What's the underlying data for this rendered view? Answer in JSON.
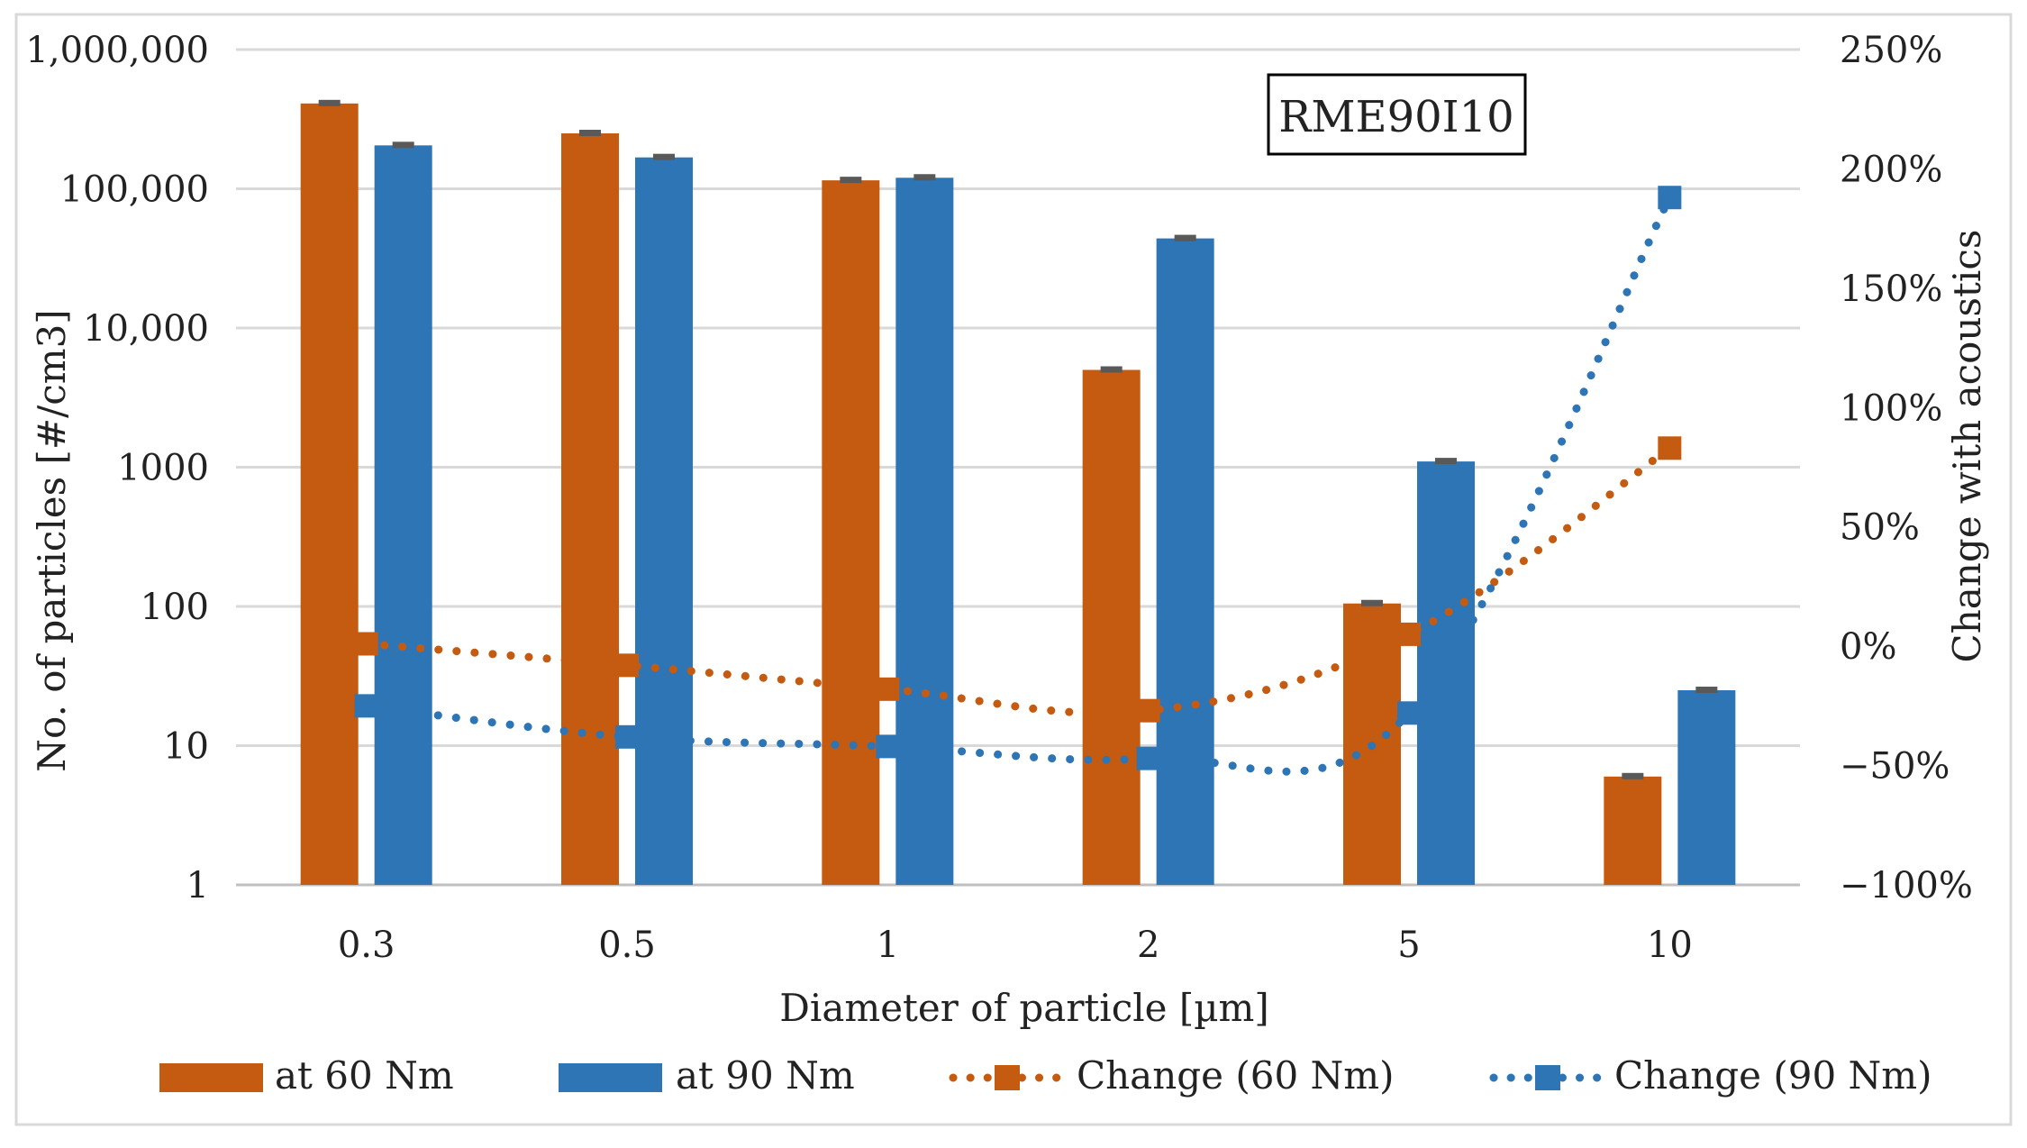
{
  "chart_data": {
    "type": "bar",
    "title": "",
    "annotation": "RME90I10",
    "categories": [
      "0.3",
      "0.5",
      "1",
      "2",
      "5",
      "10"
    ],
    "xlabel": "Diameter of particle [µm]",
    "ylabel": "No. of particles [#/cm3]",
    "y2label": "Change with acoustics",
    "y_scale": "log",
    "ylim": [
      1,
      1000000
    ],
    "y_tick_values": [
      1,
      10,
      100,
      1000,
      10000,
      100000,
      1000000
    ],
    "y_tick_labels": [
      "1",
      "10",
      "100",
      "1000",
      "10,000",
      "100,000",
      "1,000,000"
    ],
    "y2lim": [
      -100,
      250
    ],
    "y2_tick_values": [
      -100,
      -50,
      0,
      50,
      100,
      150,
      200,
      250
    ],
    "y2_tick_labels": [
      "−100%",
      "−50%",
      "0%",
      "50%",
      "100%",
      "150%",
      "200%",
      "250%"
    ],
    "grid": true,
    "legend_position": "bottom",
    "series": [
      {
        "name": "at 60 Nm",
        "kind": "bar",
        "axis": "left",
        "color": "#c55a11",
        "values": [
          410000,
          250000,
          115000,
          5000,
          105,
          6
        ]
      },
      {
        "name": "at 90 Nm",
        "kind": "bar",
        "axis": "left",
        "color": "#2e75b6",
        "values": [
          205000,
          168000,
          120000,
          44000,
          1100,
          25
        ]
      },
      {
        "name": "Change (60 Nm)",
        "kind": "line",
        "style": "dotted",
        "marker": "square",
        "axis": "right",
        "color": "#c55a11",
        "values": [
          1,
          -8,
          -18,
          -27,
          5,
          83
        ]
      },
      {
        "name": "Change (90 Nm)",
        "kind": "line",
        "style": "dotted",
        "marker": "square",
        "axis": "right",
        "color": "#2e75b6",
        "values": [
          -25,
          -38,
          -42,
          -47,
          -28,
          188
        ]
      }
    ]
  }
}
